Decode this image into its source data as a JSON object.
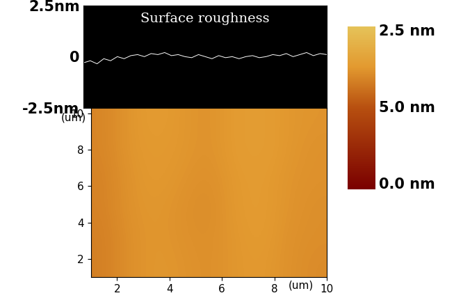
{
  "chart_data": [
    {
      "type": "line",
      "title": "Surface roughness",
      "x": [
        1,
        1.25,
        1.5,
        1.75,
        2,
        2.25,
        2.5,
        2.75,
        3,
        3.25,
        3.5,
        3.75,
        4,
        4.25,
        4.5,
        4.75,
        5,
        5.25,
        5.5,
        5.75,
        6,
        6.25,
        6.5,
        6.75,
        7,
        7.25,
        7.5,
        7.75,
        8,
        8.25,
        8.5,
        8.75,
        9,
        9.25,
        9.5,
        9.75,
        10
      ],
      "values": [
        -0.3,
        -0.2,
        -0.35,
        -0.1,
        -0.2,
        0.0,
        -0.1,
        0.05,
        0.1,
        0.0,
        0.15,
        0.1,
        0.2,
        0.05,
        0.1,
        0.0,
        -0.05,
        0.1,
        0.0,
        -0.1,
        0.05,
        -0.05,
        0.0,
        -0.1,
        0.0,
        0.05,
        -0.05,
        0.0,
        0.1,
        0.05,
        0.15,
        0.0,
        0.1,
        0.2,
        0.05,
        0.15,
        0.1
      ],
      "color": "#ffffff",
      "xlim": [
        1,
        10
      ],
      "ylim": [
        -2.5,
        2.5
      ],
      "yticks": [
        {
          "value": 2.5,
          "label": "2.5nm"
        },
        0,
        {
          "value": -2.5,
          "label": "-2.5nm"
        }
      ],
      "tick_labels": "y"
    },
    {
      "type": "heatmap",
      "x_label": "(um)",
      "y_label": "(um)",
      "xlim": [
        1,
        10
      ],
      "ylim": [
        1,
        10.3
      ],
      "xticks": [
        2,
        4,
        6,
        8,
        10
      ],
      "yticks": [
        2,
        4,
        6,
        8,
        10
      ],
      "cells": [
        [
          3.3,
          3.6,
          3.7,
          3.65,
          3.55,
          3.7,
          3.75,
          3.6,
          3.5
        ],
        [
          3.3,
          3.6,
          3.7,
          3.6,
          3.55,
          3.7,
          3.8,
          3.6,
          3.55
        ],
        [
          3.35,
          3.65,
          3.7,
          3.6,
          3.5,
          3.75,
          3.8,
          3.65,
          3.55
        ],
        [
          3.35,
          3.65,
          3.75,
          3.65,
          3.55,
          3.75,
          3.8,
          3.65,
          3.6
        ],
        [
          3.4,
          3.7,
          3.75,
          3.7,
          3.6,
          3.8,
          3.85,
          3.7,
          3.6
        ],
        [
          3.4,
          3.7,
          3.8,
          3.7,
          3.6,
          3.8,
          3.85,
          3.7,
          3.65
        ]
      ],
      "colorbar_range": [
        0,
        5
      ],
      "colorbar_labels": [
        "2.5 nm",
        "5.0 nm",
        "0.0 nm"
      ]
    }
  ]
}
